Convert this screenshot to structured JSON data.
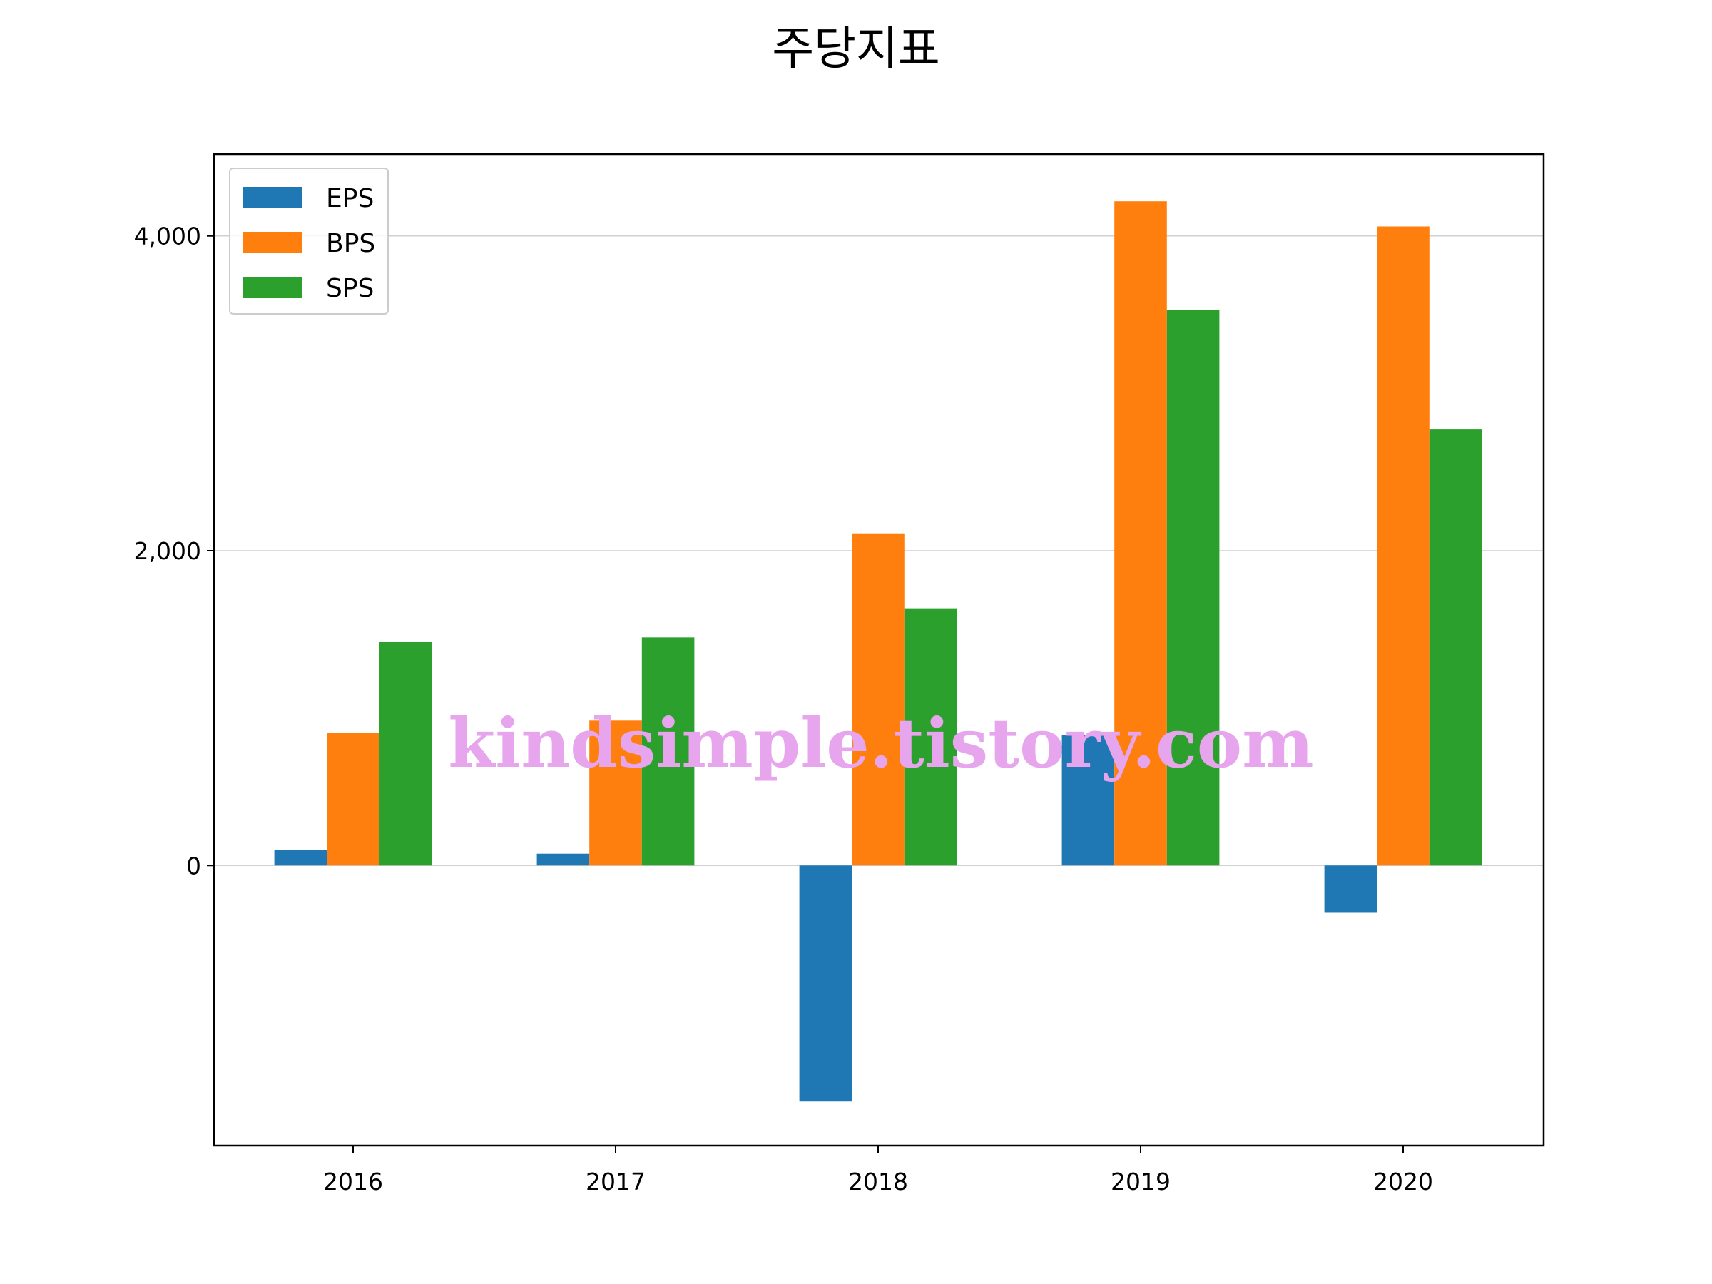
{
  "chart_data": {
    "type": "bar",
    "title": "주당지표",
    "xlabel": "",
    "ylabel": "",
    "categories": [
      "2016",
      "2017",
      "2018",
      "2019",
      "2020"
    ],
    "series": [
      {
        "name": "EPS",
        "color": "#1f77b4",
        "values": [
          100,
          75,
          -1500,
          830,
          -300
        ]
      },
      {
        "name": "BPS",
        "color": "#ff7f0e",
        "values": [
          840,
          920,
          2110,
          4220,
          4060
        ]
      },
      {
        "name": "SPS",
        "color": "#2ca02c",
        "values": [
          1420,
          1450,
          1630,
          3530,
          2770
        ]
      }
    ],
    "ylim": [
      -1780,
      4520
    ],
    "yticks": [
      0,
      2000,
      4000
    ],
    "ytick_labels": [
      "0",
      "2,000",
      "4,000"
    ],
    "grid": "horizontal",
    "legend_position": "top-left"
  },
  "watermark": {
    "text": "kindsimple.tistory.com",
    "color": "#e6a5ec"
  }
}
